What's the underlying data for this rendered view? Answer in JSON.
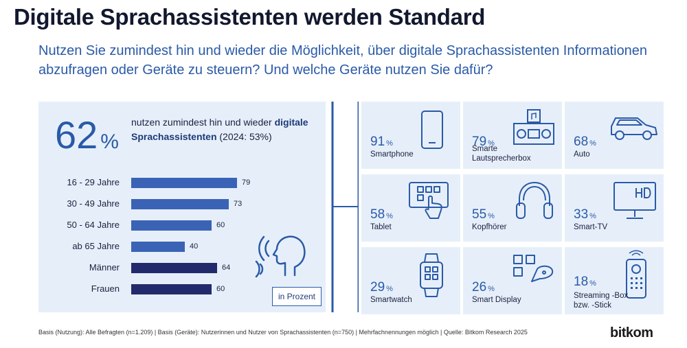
{
  "header": {
    "title": "Digitale Sprachassistenten werden Standard",
    "subtitle": "Nutzen Sie zumindest hin und wieder die Möglichkeit, über digitale Sprachassistenten Informationen abzufragen oder Geräte zu steuern? Und welche Geräte nutzen Sie dafür?"
  },
  "summary": {
    "value": "62",
    "unit": "%",
    "text_part1": "nutzen zumindest hin und wieder ",
    "text_bold": "digitale Sprachassistenten",
    "text_part2": " (2024: 53%)"
  },
  "legend_label": "in Prozent",
  "colors": {
    "light_bar": "#3a63b5",
    "dark_bar": "#232a6b",
    "accent": "#2a5aa8",
    "panel": "#e6eff9"
  },
  "chart_data": [
    {
      "type": "bar",
      "orientation": "horizontal",
      "categories": [
        "16 - 29 Jahre",
        "30 - 49 Jahre",
        "50 - 64 Jahre",
        "ab 65 Jahre",
        "Männer",
        "Frauen"
      ],
      "values": [
        79,
        73,
        60,
        40,
        64,
        60
      ],
      "unit": "in Prozent"
    },
    {
      "type": "table",
      "items": [
        {
          "label": "Smartphone",
          "value": "91",
          "icon": "smartphone-icon"
        },
        {
          "label": "Smarte Lautsprecherbox",
          "value": "79",
          "icon": "smart-speaker-icon"
        },
        {
          "label": "Auto",
          "value": "68",
          "icon": "car-icon"
        },
        {
          "label": "Tablet",
          "value": "58",
          "icon": "tablet-icon"
        },
        {
          "label": "Kopfhörer",
          "value": "55",
          "icon": "headphones-icon"
        },
        {
          "label": "Smart-TV",
          "value": "33",
          "icon": "smart-tv-icon"
        },
        {
          "label": "Smartwatch",
          "value": "29",
          "icon": "smartwatch-icon"
        },
        {
          "label": "Smart Display",
          "value": "26",
          "icon": "smart-display-icon"
        },
        {
          "label": "Streaming -Box bzw. -Stick",
          "value": "18",
          "icon": "remote-control-icon"
        }
      ],
      "unit": "%"
    }
  ],
  "footer": "Basis (Nutzung): Alle Befragten (n=1.209) | Basis (Geräte): Nutzerinnen und Nutzer von Sprachassistenten (n=750) | Mehrfachnennungen möglich | Quelle: Bitkom Research 2025",
  "logo": "bitkom"
}
